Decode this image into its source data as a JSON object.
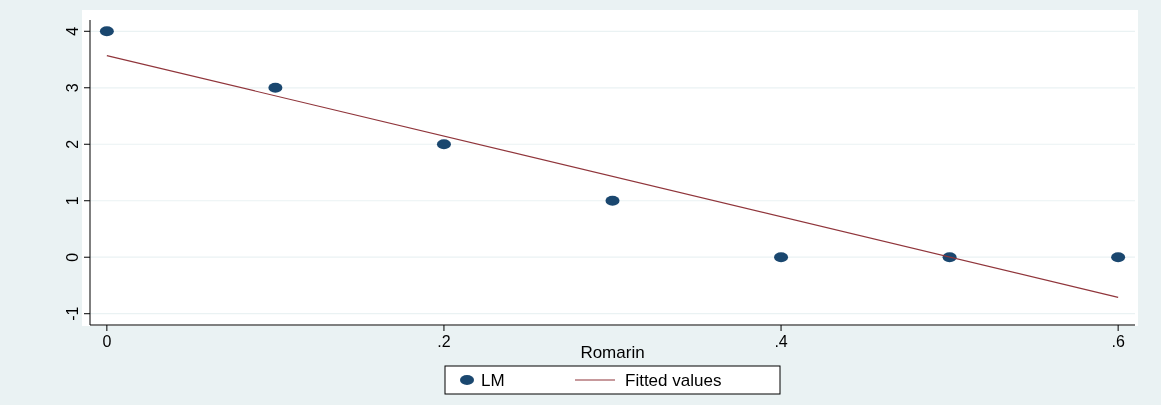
{
  "chart_data": {
    "type": "scatter",
    "xlabel": "Romarin",
    "x": [
      0,
      0.1,
      0.2,
      0.3,
      0.4,
      0.5,
      0.6
    ],
    "series": [
      {
        "name": "LM",
        "color": "#1a476f",
        "marker": "circle",
        "values": [
          4,
          3,
          2,
          1,
          0,
          0,
          0
        ]
      },
      {
        "name": "Fitted values",
        "type": "line",
        "color": "#90353b",
        "marker": "none",
        "line_style": "solid",
        "x": [
          0,
          0.6
        ],
        "values": [
          3.57,
          -0.71
        ]
      }
    ],
    "xlim": [
      -0.01,
      0.61
    ],
    "xticks": [
      0,
      {
        "value": 0.2,
        "label": ".2"
      },
      {
        "value": 0.4,
        "label": ".4"
      },
      {
        "value": 0.6,
        "label": ".6"
      }
    ],
    "ylim": [
      -1.2,
      4.2
    ],
    "yticks": [
      -1,
      0,
      1,
      2,
      3,
      4
    ],
    "grid": "y",
    "legend": "bottom"
  }
}
